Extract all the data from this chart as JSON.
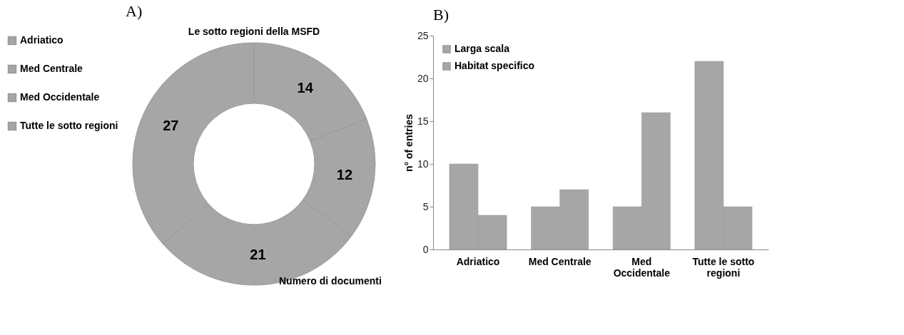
{
  "chart_data": [
    {
      "type": "donut",
      "title": "A)",
      "subtitle": "Le sotto regioni della MSFD",
      "categories": [
        "Adriatico",
        "Med Centrale",
        "Med Occidentale",
        "Tutte le sotto regioni"
      ],
      "values": [
        14,
        12,
        21,
        27
      ],
      "colors": [
        "#a6a6a6",
        "#a6a6a6",
        "#a6a6a6",
        "#a6a6a6"
      ],
      "data_labels": true,
      "legend": "left",
      "annotations": [
        "Numero di documenti"
      ]
    },
    {
      "type": "bar",
      "title": "B)",
      "ylabel": "n° of entries",
      "categories": [
        "Adriatico",
        "Med Centrale",
        "Med Occidentale",
        "Tutte le sotto regioni"
      ],
      "series": [
        {
          "name": "Larga scala",
          "color": "#a6a6a6",
          "values": [
            10,
            5,
            5,
            22
          ]
        },
        {
          "name": "Habitat specifico",
          "color": "#a6a6a6",
          "values": [
            4,
            7,
            16,
            5
          ]
        }
      ],
      "ylim": [
        0,
        25
      ],
      "yticks": [
        0,
        5,
        10,
        15,
        20,
        25
      ],
      "grid": false,
      "legend": "top left"
    }
  ]
}
